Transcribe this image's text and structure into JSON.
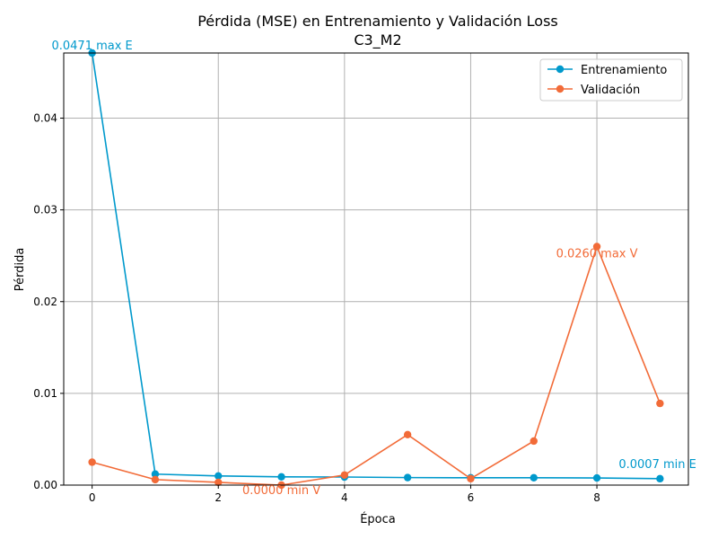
{
  "chart_data": {
    "type": "line",
    "title_line1": "Pérdida (MSE) en Entrenamiento y Validación Loss",
    "title_line2": "C3_M2",
    "xlabel": "Época",
    "ylabel": "Pérdida",
    "x": [
      0,
      1,
      2,
      3,
      4,
      5,
      6,
      7,
      8,
      9
    ],
    "xlim": [
      -0.45,
      9.45
    ],
    "ylim": [
      0,
      0.0471
    ],
    "xticks": [
      0,
      2,
      4,
      6,
      8
    ],
    "xtick_labels": [
      "0",
      "2",
      "4",
      "6",
      "8"
    ],
    "yticks": [
      0,
      0.01,
      0.02,
      0.03,
      0.04
    ],
    "ytick_labels": [
      "0.00",
      "0.01",
      "0.02",
      "0.03",
      "0.04"
    ],
    "grid": true,
    "legend_position": "top-right",
    "series": [
      {
        "name": "Entrenamiento",
        "color": "#0099cc",
        "values": [
          0.0471,
          0.0012,
          0.001,
          0.0009,
          0.00088,
          0.00082,
          0.0008,
          0.0008,
          0.00078,
          0.0007
        ]
      },
      {
        "name": "Validación",
        "color": "#f26b38",
        "values": [
          0.0025,
          0.0006,
          0.0003,
          0.0,
          0.0011,
          0.0055,
          0.0007,
          0.0048,
          0.026,
          0.0089
        ]
      }
    ],
    "annotations": [
      {
        "text": "0.0471 max E",
        "x": 0,
        "y": 0.0471,
        "series": 0,
        "anchor": "middle",
        "dy": -4
      },
      {
        "text": "0.0007 min E",
        "x": 9,
        "y": 0.0007,
        "series": 0,
        "anchor": "start",
        "dx": -46,
        "dy": -12
      },
      {
        "text": "0.0260 max V",
        "x": 8,
        "y": 0.026,
        "series": 1,
        "anchor": "middle",
        "dx": 0,
        "dy": 12
      },
      {
        "text": "0.0000 min V",
        "x": 3,
        "y": 0.0,
        "series": 1,
        "anchor": "middle",
        "dx": 0,
        "dy": 10
      }
    ]
  }
}
